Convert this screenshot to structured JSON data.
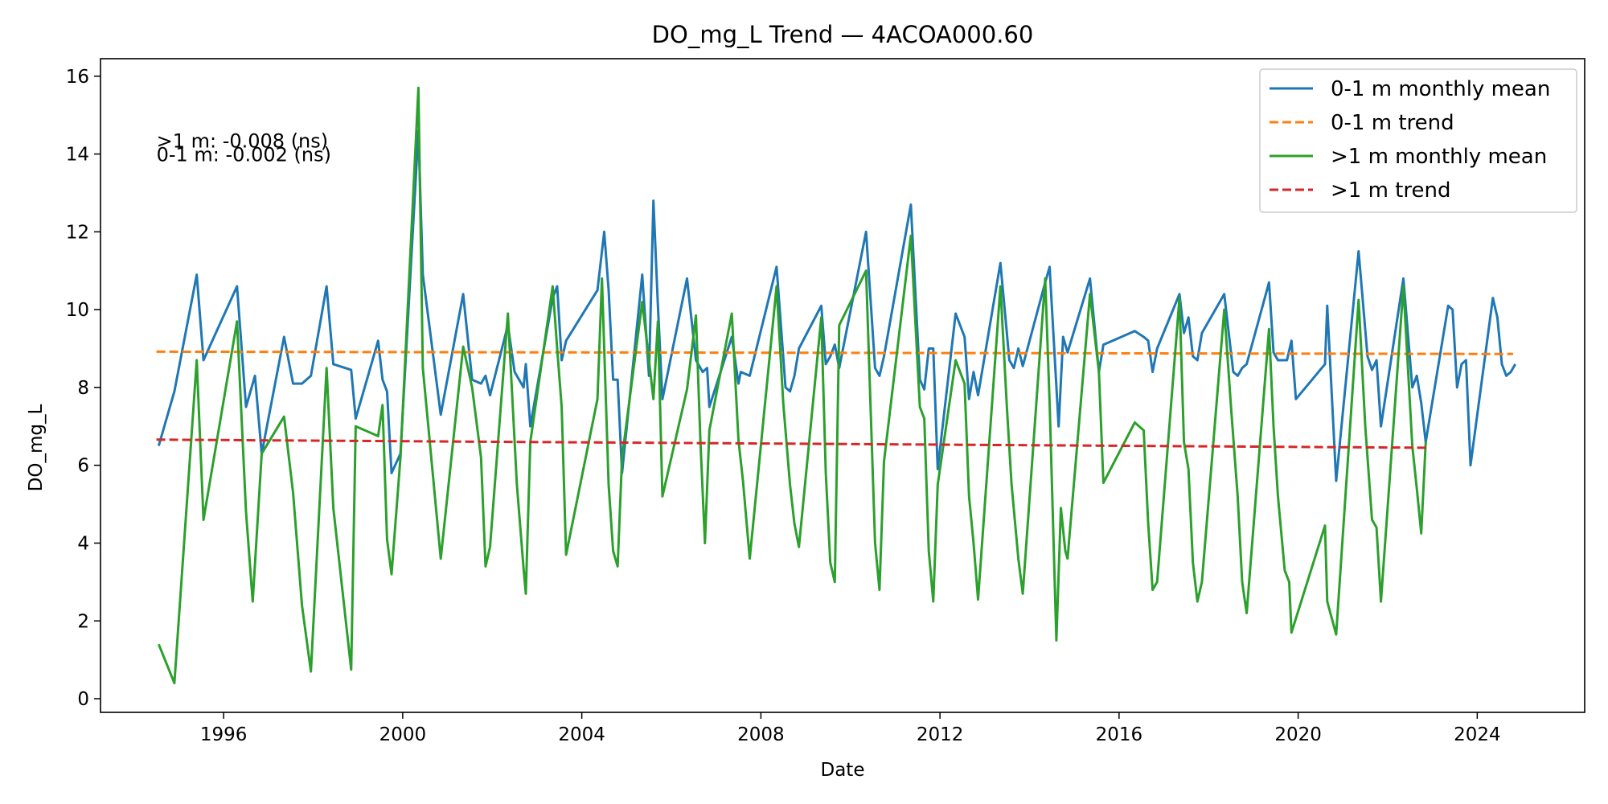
{
  "chart_data": {
    "type": "line",
    "title": "DO_mg_L Trend — 4ACOA000.60",
    "xlabel": "Date",
    "ylabel": "DO_mg_L",
    "xlim": [
      1993.25,
      2026.4
    ],
    "ylim": [
      -0.35,
      16.45
    ],
    "x_ticks": [
      1996,
      2000,
      2004,
      2008,
      2012,
      2016,
      2020,
      2024
    ],
    "y_ticks": [
      0,
      2,
      4,
      6,
      8,
      10,
      12,
      14,
      16
    ],
    "grid": false,
    "legend_position": "top-right",
    "annotations": [
      {
        "text": ">1 m: -0.008 (ns)",
        "x": 1994.5,
        "y": 14.35
      },
      {
        "text": "0-1 m: -0.002 (ns)",
        "x": 1994.5,
        "y": 14.0
      }
    ],
    "series": [
      {
        "name": "0-1 m monthly mean",
        "color": "#1f77b4",
        "style": "solid",
        "x": [
          1994.55,
          1994.9,
          1995.4,
          1995.55,
          1996.3,
          1996.5,
          1996.7,
          1996.85,
          1997.35,
          1997.55,
          1997.75,
          1997.95,
          1998.3,
          1998.45,
          1998.85,
          1998.95,
          1999.45,
          1999.55,
          1999.65,
          1999.75,
          1999.95,
          2000.35,
          2000.45,
          2000.85,
          2001.35,
          2001.55,
          2001.75,
          2001.85,
          2001.95,
          2002.35,
          2002.5,
          2002.7,
          2002.75,
          2002.85,
          2003.35,
          2003.45,
          2003.55,
          2003.65,
          2004.35,
          2004.5,
          2004.6,
          2004.7,
          2004.8,
          2004.9,
          2005.35,
          2005.5,
          2005.6,
          2005.7,
          2005.8,
          2006.35,
          2006.55,
          2006.7,
          2006.8,
          2006.85,
          2007.35,
          2007.5,
          2007.55,
          2007.75,
          2008.35,
          2008.55,
          2008.65,
          2008.75,
          2008.85,
          2009.35,
          2009.45,
          2009.55,
          2009.65,
          2009.75,
          2010.35,
          2010.55,
          2010.65,
          2010.75,
          2011.35,
          2011.55,
          2011.65,
          2011.75,
          2011.85,
          2011.95,
          2012.35,
          2012.55,
          2012.65,
          2012.75,
          2012.85,
          2013.35,
          2013.55,
          2013.65,
          2013.75,
          2013.85,
          2014.35,
          2014.45,
          2014.65,
          2014.75,
          2014.85,
          2015.35,
          2015.55,
          2015.65,
          2016.35,
          2016.55,
          2016.65,
          2016.75,
          2016.85,
          2017.35,
          2017.45,
          2017.55,
          2017.65,
          2017.75,
          2017.85,
          2018.35,
          2018.55,
          2018.65,
          2018.75,
          2018.85,
          2019.35,
          2019.45,
          2019.55,
          2019.75,
          2019.85,
          2019.95,
          2020.6,
          2020.65,
          2020.85,
          2021.35,
          2021.55,
          2021.65,
          2021.75,
          2021.85,
          2022.35,
          2022.55,
          2022.65,
          2022.75,
          2022.85,
          2023.35,
          2023.45,
          2023.55,
          2023.65,
          2023.75,
          2023.85,
          2024.35,
          2024.45,
          2024.55,
          2024.65,
          2024.75,
          2024.85
        ],
        "y": [
          6.5,
          7.9,
          10.9,
          8.7,
          10.6,
          7.5,
          8.3,
          6.3,
          9.3,
          8.1,
          8.1,
          8.3,
          10.6,
          8.6,
          8.45,
          7.2,
          9.2,
          8.2,
          7.9,
          5.8,
          6.3,
          14.6,
          10.9,
          7.3,
          10.4,
          8.2,
          8.1,
          8.3,
          7.8,
          9.6,
          8.4,
          8.0,
          8.6,
          7.0,
          10.3,
          10.6,
          8.7,
          9.2,
          10.5,
          12.0,
          10.5,
          8.2,
          8.2,
          5.8,
          10.9,
          8.3,
          12.8,
          10.1,
          7.7,
          10.8,
          8.7,
          8.4,
          8.5,
          7.5,
          9.3,
          8.1,
          8.4,
          8.3,
          11.1,
          8.0,
          7.9,
          8.3,
          9.0,
          10.1,
          8.6,
          8.8,
          9.1,
          8.5,
          12.0,
          8.5,
          8.3,
          8.8,
          12.7,
          8.2,
          7.95,
          9.0,
          9.0,
          5.9,
          9.9,
          9.3,
          7.7,
          8.4,
          7.8,
          11.2,
          8.7,
          8.5,
          9.0,
          8.55,
          10.7,
          11.1,
          7.0,
          9.3,
          8.9,
          10.8,
          8.4,
          9.1,
          9.45,
          9.3,
          9.2,
          8.4,
          9.0,
          10.4,
          9.4,
          9.8,
          8.8,
          8.7,
          9.4,
          10.4,
          8.4,
          8.3,
          8.5,
          8.6,
          10.7,
          8.9,
          8.7,
          8.7,
          9.2,
          7.7,
          8.6,
          10.1,
          5.6,
          11.5,
          8.8,
          8.45,
          8.7,
          7.0,
          10.8,
          8.0,
          8.3,
          7.6,
          6.6,
          10.1,
          10.0,
          8.0,
          8.6,
          8.7,
          6.0,
          10.3,
          9.8,
          8.6,
          8.3,
          8.4,
          8.6
        ],
        "label": "0-1 m monthly mean"
      },
      {
        "name": "0-1 m trend",
        "color": "#ff7f0e",
        "style": "dashed",
        "x": [
          1994.5,
          2024.8
        ],
        "y": [
          8.92,
          8.86
        ],
        "label": "0-1 m trend"
      },
      {
        "name": ">1 m monthly mean",
        "color": "#2ca02c",
        "style": "solid",
        "x": [
          1994.55,
          1994.9,
          1995.4,
          1995.55,
          1996.3,
          1996.5,
          1996.65,
          1996.85,
          1997.35,
          1997.55,
          1997.75,
          1997.95,
          1998.3,
          1998.45,
          1998.85,
          1998.95,
          1999.45,
          1999.55,
          1999.65,
          1999.75,
          1999.95,
          2000.35,
          2000.45,
          2000.85,
          2001.35,
          2001.55,
          2001.75,
          2001.85,
          2001.95,
          2002.35,
          2002.55,
          2002.7,
          2002.75,
          2002.85,
          2003.35,
          2003.45,
          2003.55,
          2003.65,
          2004.35,
          2004.45,
          2004.6,
          2004.7,
          2004.8,
          2004.9,
          2005.35,
          2005.5,
          2005.6,
          2005.7,
          2005.8,
          2006.35,
          2006.55,
          2006.65,
          2006.75,
          2006.85,
          2007.35,
          2007.5,
          2007.6,
          2007.75,
          2008.35,
          2008.5,
          2008.65,
          2008.75,
          2008.85,
          2009.35,
          2009.45,
          2009.55,
          2009.65,
          2009.75,
          2010.35,
          2010.55,
          2010.65,
          2010.75,
          2011.35,
          2011.55,
          2011.65,
          2011.75,
          2011.85,
          2011.95,
          2012.35,
          2012.55,
          2012.65,
          2012.75,
          2012.85,
          2013.35,
          2013.5,
          2013.6,
          2013.75,
          2013.85,
          2014.35,
          2014.45,
          2014.6,
          2014.7,
          2014.8,
          2014.85,
          2015.35,
          2015.55,
          2015.65,
          2016.35,
          2016.55,
          2016.65,
          2016.75,
          2016.85,
          2017.35,
          2017.45,
          2017.55,
          2017.65,
          2017.75,
          2017.85,
          2018.35,
          2018.5,
          2018.65,
          2018.75,
          2018.85,
          2019.35,
          2019.45,
          2019.55,
          2019.7,
          2019.8,
          2019.85,
          2020.6,
          2020.65,
          2020.85,
          2021.35,
          2021.5,
          2021.65,
          2021.75,
          2021.85,
          2022.35,
          2022.55,
          2022.65,
          2022.75,
          2022.85
        ],
        "y": [
          1.4,
          0.4,
          8.7,
          4.6,
          9.7,
          4.8,
          2.5,
          6.3,
          7.25,
          5.3,
          2.4,
          0.7,
          8.5,
          4.9,
          0.75,
          7.0,
          6.75,
          7.55,
          4.1,
          3.2,
          6.2,
          15.7,
          8.5,
          3.6,
          9.05,
          8.0,
          6.2,
          3.4,
          3.9,
          9.9,
          5.5,
          3.35,
          2.7,
          6.6,
          10.6,
          9.0,
          7.5,
          3.7,
          7.7,
          10.8,
          5.5,
          3.8,
          3.4,
          6.2,
          10.2,
          8.7,
          7.7,
          9.7,
          5.2,
          7.95,
          9.85,
          6.6,
          4.0,
          6.9,
          9.9,
          6.65,
          5.6,
          3.6,
          10.6,
          7.6,
          5.5,
          4.5,
          3.9,
          9.8,
          5.8,
          3.5,
          3.0,
          9.6,
          11.0,
          4.0,
          2.8,
          6.1,
          11.9,
          7.5,
          7.2,
          3.8,
          2.5,
          5.5,
          8.7,
          8.1,
          5.2,
          4.0,
          2.55,
          10.6,
          7.4,
          5.5,
          3.6,
          2.7,
          10.8,
          7.6,
          1.5,
          4.9,
          3.8,
          3.6,
          10.4,
          8.4,
          5.55,
          7.1,
          6.9,
          4.5,
          2.8,
          3.0,
          10.3,
          6.6,
          5.9,
          3.5,
          2.5,
          3.0,
          10.0,
          7.5,
          5.2,
          3.0,
          2.2,
          9.5,
          7.0,
          5.2,
          3.3,
          3.0,
          1.7,
          4.45,
          2.5,
          1.65,
          10.25,
          7.0,
          4.6,
          4.4,
          2.5,
          10.6,
          6.5,
          5.4,
          4.25,
          6.6
        ],
        "label": ">1 m monthly mean"
      },
      {
        "name": ">1 m trend",
        "color": "#d62728",
        "style": "dashed",
        "x": [
          1994.5,
          2022.9
        ],
        "y": [
          6.66,
          6.45
        ],
        "label": ">1 m trend"
      }
    ]
  }
}
